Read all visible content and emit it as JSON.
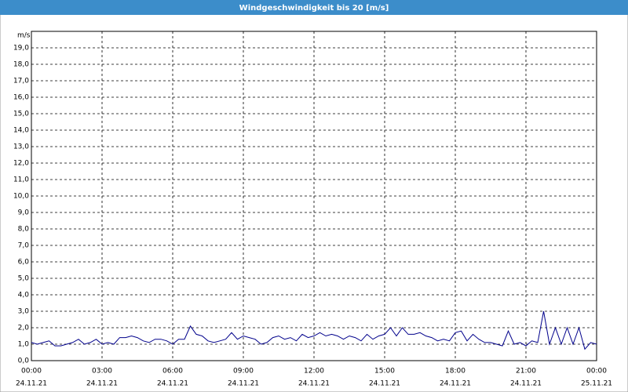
{
  "chart_data": {
    "type": "line",
    "title": "Windgeschwindigkeit bis 20 [m/s]",
    "ylabel": "m/s",
    "xlim": [
      0,
      24
    ],
    "ylim": [
      0,
      20
    ],
    "grid": true,
    "xticks": [
      {
        "value": 0,
        "label": "00:00"
      },
      {
        "value": 3,
        "label": "03:00"
      },
      {
        "value": 6,
        "label": "06:00"
      },
      {
        "value": 9,
        "label": "09:00"
      },
      {
        "value": 12,
        "label": "12:00"
      },
      {
        "value": 15,
        "label": "15:00"
      },
      {
        "value": 18,
        "label": "18:00"
      },
      {
        "value": 21,
        "label": "21:00"
      },
      {
        "value": 24,
        "label": "00:00"
      }
    ],
    "xtick_dates": [
      "24.11.21",
      "24.11.21",
      "24.11.21",
      "24.11.21",
      "24.11.21",
      "24.11.21",
      "24.11.21",
      "24.11.21",
      "25.11.21"
    ],
    "yticks": [
      {
        "value": 0,
        "label": "0,0"
      },
      {
        "value": 1,
        "label": "1,0"
      },
      {
        "value": 2,
        "label": "2,0"
      },
      {
        "value": 3,
        "label": "3,0"
      },
      {
        "value": 4,
        "label": "4,0"
      },
      {
        "value": 5,
        "label": "5,0"
      },
      {
        "value": 6,
        "label": "6,0"
      },
      {
        "value": 7,
        "label": "7,0"
      },
      {
        "value": 8,
        "label": "8,0"
      },
      {
        "value": 9,
        "label": "9,0"
      },
      {
        "value": 10,
        "label": "10,0"
      },
      {
        "value": 11,
        "label": "11,0"
      },
      {
        "value": 12,
        "label": "12,0"
      },
      {
        "value": 13,
        "label": "13,0"
      },
      {
        "value": 14,
        "label": "14,0"
      },
      {
        "value": 15,
        "label": "15,0"
      },
      {
        "value": 16,
        "label": "16,0"
      },
      {
        "value": 17,
        "label": "17,0"
      },
      {
        "value": 18,
        "label": "18,0"
      },
      {
        "value": 19,
        "label": "19,0"
      }
    ],
    "x": [
      0,
      0.25,
      0.5,
      0.75,
      1,
      1.25,
      1.5,
      1.75,
      2,
      2.25,
      2.5,
      2.75,
      3,
      3.25,
      3.5,
      3.75,
      4,
      4.25,
      4.5,
      4.75,
      5,
      5.25,
      5.5,
      5.75,
      6,
      6.25,
      6.5,
      6.75,
      7,
      7.25,
      7.5,
      7.75,
      8,
      8.25,
      8.5,
      8.75,
      9,
      9.25,
      9.5,
      9.75,
      10,
      10.25,
      10.5,
      10.75,
      11,
      11.25,
      11.5,
      11.75,
      12,
      12.25,
      12.5,
      12.75,
      13,
      13.25,
      13.5,
      13.75,
      14,
      14.25,
      14.5,
      14.75,
      15,
      15.25,
      15.5,
      15.75,
      16,
      16.25,
      16.5,
      16.75,
      17,
      17.25,
      17.5,
      17.75,
      18,
      18.25,
      18.5,
      18.75,
      19,
      19.25,
      19.5,
      19.75,
      20,
      20.25,
      20.5,
      20.75,
      21,
      21.25,
      21.5,
      21.75,
      22,
      22.25,
      22.5,
      22.75,
      23,
      23.25,
      23.5,
      23.75,
      24
    ],
    "series": [
      {
        "color": "#00008b",
        "values": [
          1.1,
          1.0,
          1.1,
          1.2,
          0.9,
          0.9,
          1.0,
          1.1,
          1.3,
          1.0,
          1.1,
          1.3,
          1.0,
          1.1,
          1.0,
          1.4,
          1.4,
          1.5,
          1.4,
          1.2,
          1.1,
          1.3,
          1.3,
          1.2,
          1.0,
          1.3,
          1.3,
          2.1,
          1.6,
          1.5,
          1.2,
          1.1,
          1.2,
          1.3,
          1.7,
          1.3,
          1.5,
          1.4,
          1.3,
          1.0,
          1.1,
          1.4,
          1.5,
          1.3,
          1.4,
          1.2,
          1.6,
          1.4,
          1.5,
          1.7,
          1.5,
          1.6,
          1.5,
          1.3,
          1.5,
          1.4,
          1.2,
          1.6,
          1.3,
          1.5,
          1.6,
          2.0,
          1.5,
          2.0,
          1.6,
          1.6,
          1.7,
          1.5,
          1.4,
          1.2,
          1.3,
          1.2,
          1.7,
          1.8,
          1.2,
          1.6,
          1.3,
          1.1,
          1.1,
          1.0,
          0.9,
          1.8,
          1.0,
          1.1,
          0.9,
          1.2,
          1.1,
          3.0,
          1.0,
          2.0,
          1.0,
          2.0,
          1.0,
          2.0,
          0.7,
          1.1,
          1.0
        ]
      }
    ]
  }
}
